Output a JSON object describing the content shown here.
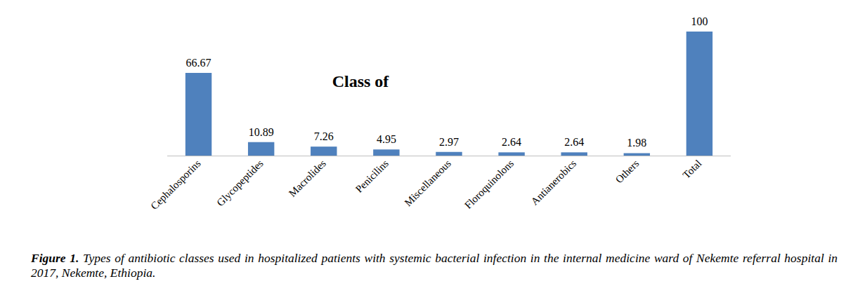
{
  "chart_data": {
    "type": "bar",
    "title": "Class of",
    "categories": [
      "Cephalosporins",
      "Glycopeptides",
      "Macrolides",
      "Penicilins",
      "Miscellaneous",
      "Floroquinolons",
      "Antianerobics",
      "Others",
      "Total"
    ],
    "values": [
      66.67,
      10.89,
      7.26,
      4.95,
      2.97,
      2.64,
      2.64,
      1.98,
      100
    ],
    "color": "#4f81bd",
    "ylim": [
      0,
      100
    ],
    "tick_labels": "x",
    "data_labels": true,
    "grid": false
  },
  "caption": {
    "label": "Figure 1.",
    "text": "Types of antibiotic classes used in hospitalized patients with systemic bacterial infection in the internal medicine ward of Nekemte referral hospital in 2017, Nekemte, Ethiopia."
  }
}
